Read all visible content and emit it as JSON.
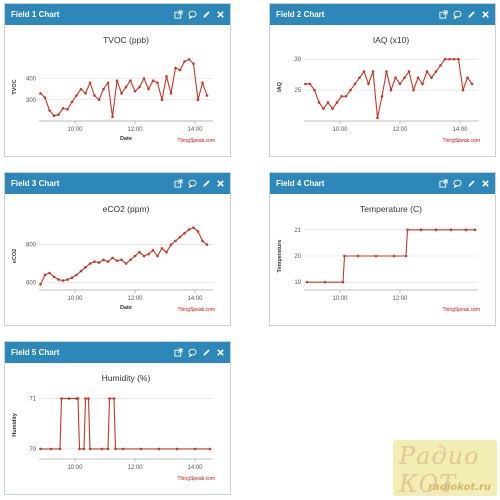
{
  "panels": [
    {
      "title": "Field 1 Chart"
    },
    {
      "title": "Field 2 Chart"
    },
    {
      "title": "Field 3 Chart"
    },
    {
      "title": "Field 4 Chart"
    },
    {
      "title": "Field 5 Chart"
    }
  ],
  "header_icons": [
    "external-link-icon",
    "comment-icon",
    "pencil-icon",
    "close-icon"
  ],
  "credit": "ThingSpeak.com",
  "logo": {
    "top": "Радио КОТ",
    "bottom": "radiokot.ru"
  },
  "chart_data": [
    {
      "type": "line",
      "title": "TVOC (ppb)",
      "xlabel": "Date",
      "ylabel": "TVOC",
      "x_ticks": [
        "10:00",
        "12:00",
        "14:00"
      ],
      "y_ticks": [
        200,
        300,
        400
      ],
      "y_tick_labels": [
        "",
        "300",
        "400"
      ],
      "ylim": [
        200,
        520
      ],
      "xlim": [
        8.8,
        14.6
      ],
      "series": [
        {
          "color": "#c0392b",
          "x": [
            8.85,
            9.0,
            9.15,
            9.3,
            9.45,
            9.6,
            9.75,
            9.9,
            10.05,
            10.2,
            10.35,
            10.5,
            10.65,
            10.8,
            10.95,
            11.1,
            11.25,
            11.4,
            11.55,
            11.7,
            11.85,
            12.0,
            12.15,
            12.3,
            12.45,
            12.6,
            12.75,
            12.9,
            13.05,
            13.2,
            13.35,
            13.5,
            13.65,
            13.8,
            13.95,
            14.1,
            14.25,
            14.4
          ],
          "values": [
            330,
            310,
            250,
            225,
            230,
            260,
            255,
            290,
            320,
            350,
            330,
            380,
            320,
            300,
            350,
            380,
            220,
            390,
            330,
            360,
            390,
            340,
            360,
            400,
            350,
            390,
            380,
            300,
            410,
            330,
            450,
            440,
            480,
            490,
            470,
            300,
            380,
            320
          ]
        }
      ]
    },
    {
      "type": "line",
      "title": "IAQ (x10)",
      "xlabel": "",
      "ylabel": "IAQ",
      "x_ticks": [
        "10:00",
        "12:00",
        "14:00"
      ],
      "y_ticks": [
        25,
        30
      ],
      "y_tick_labels": [
        "25",
        "30"
      ],
      "ylim": [
        20,
        31
      ],
      "xlim": [
        8.8,
        14.6
      ],
      "series": [
        {
          "color": "#c0392b",
          "x": [
            8.85,
            9.0,
            9.15,
            9.3,
            9.45,
            9.6,
            9.75,
            9.9,
            10.05,
            10.2,
            10.35,
            10.5,
            10.65,
            10.8,
            10.95,
            11.1,
            11.25,
            11.4,
            11.55,
            11.7,
            11.85,
            12.0,
            12.15,
            12.3,
            12.45,
            12.6,
            12.75,
            12.9,
            13.05,
            13.2,
            13.35,
            13.5,
            13.65,
            13.8,
            13.95,
            14.1,
            14.25,
            14.4
          ],
          "values": [
            26,
            26,
            25,
            23,
            22,
            23,
            22,
            23,
            24,
            24,
            25,
            26,
            27,
            28,
            26,
            28,
            20.5,
            24,
            28,
            25,
            27,
            26,
            27,
            28,
            25,
            27,
            26,
            28,
            27,
            28,
            29,
            30,
            30,
            30,
            30,
            25,
            27,
            26
          ]
        }
      ]
    },
    {
      "type": "line",
      "title": "eCO2 (ppm)",
      "xlabel": "Date",
      "ylabel": "eCO2",
      "x_ticks": [
        "10:00",
        "12:00",
        "14:00"
      ],
      "y_ticks": [
        600,
        800
      ],
      "y_tick_labels": [
        "600",
        "800"
      ],
      "ylim": [
        560,
        920
      ],
      "xlim": [
        8.8,
        14.6
      ],
      "series": [
        {
          "color": "#c0392b",
          "x": [
            8.85,
            9.0,
            9.15,
            9.3,
            9.45,
            9.6,
            9.75,
            9.9,
            10.05,
            10.2,
            10.35,
            10.5,
            10.65,
            10.8,
            10.95,
            11.1,
            11.25,
            11.4,
            11.55,
            11.7,
            11.85,
            12.0,
            12.15,
            12.3,
            12.45,
            12.6,
            12.75,
            12.9,
            13.05,
            13.2,
            13.35,
            13.5,
            13.65,
            13.8,
            13.95,
            14.1,
            14.25,
            14.4
          ],
          "values": [
            590,
            640,
            650,
            630,
            615,
            610,
            615,
            625,
            640,
            660,
            680,
            700,
            710,
            705,
            720,
            710,
            730,
            715,
            720,
            700,
            720,
            740,
            760,
            740,
            750,
            770,
            740,
            780,
            760,
            800,
            820,
            840,
            860,
            880,
            890,
            870,
            820,
            800
          ]
        }
      ]
    },
    {
      "type": "line",
      "title": "Temperature (C)",
      "xlabel": "",
      "ylabel": "Temperature",
      "x_ticks": [
        "10:00",
        "12:00"
      ],
      "y_ticks": [
        19,
        20,
        21
      ],
      "y_tick_labels": [
        "19",
        "20",
        "21"
      ],
      "ylim": [
        18.7,
        21.3
      ],
      "xlim": [
        8.8,
        14.6
      ],
      "series": [
        {
          "color": "#c0392b",
          "x": [
            8.9,
            9.5,
            10.1,
            10.15,
            10.6,
            11.2,
            11.8,
            12.2,
            12.25,
            12.7,
            13.2,
            13.7,
            14.2,
            14.5
          ],
          "values": [
            19,
            19,
            19,
            20,
            20,
            20,
            20,
            20,
            21,
            21,
            21,
            21,
            21,
            21
          ]
        }
      ]
    },
    {
      "type": "line",
      "title": "Humidity (%)",
      "xlabel": "",
      "ylabel": "Humidity",
      "x_ticks": [
        "10:00",
        "12:00",
        "14:00"
      ],
      "y_ticks": [
        70,
        71
      ],
      "y_tick_labels": [
        "70",
        "71"
      ],
      "ylim": [
        69.8,
        71.15
      ],
      "xlim": [
        8.8,
        14.6
      ],
      "series": [
        {
          "color": "#c0392b",
          "x": [
            8.85,
            9.2,
            9.5,
            9.55,
            9.8,
            10.05,
            10.1,
            10.15,
            10.3,
            10.35,
            10.45,
            10.5,
            10.9,
            11.1,
            11.15,
            11.3,
            11.35,
            11.6,
            12.2,
            12.8,
            13.4,
            14.0,
            14.5
          ],
          "values": [
            70,
            70,
            70,
            71,
            71,
            71,
            71,
            70,
            70,
            71,
            71,
            70,
            70,
            70,
            71,
            71,
            70,
            70,
            70,
            70,
            70,
            70,
            70
          ]
        }
      ]
    }
  ]
}
